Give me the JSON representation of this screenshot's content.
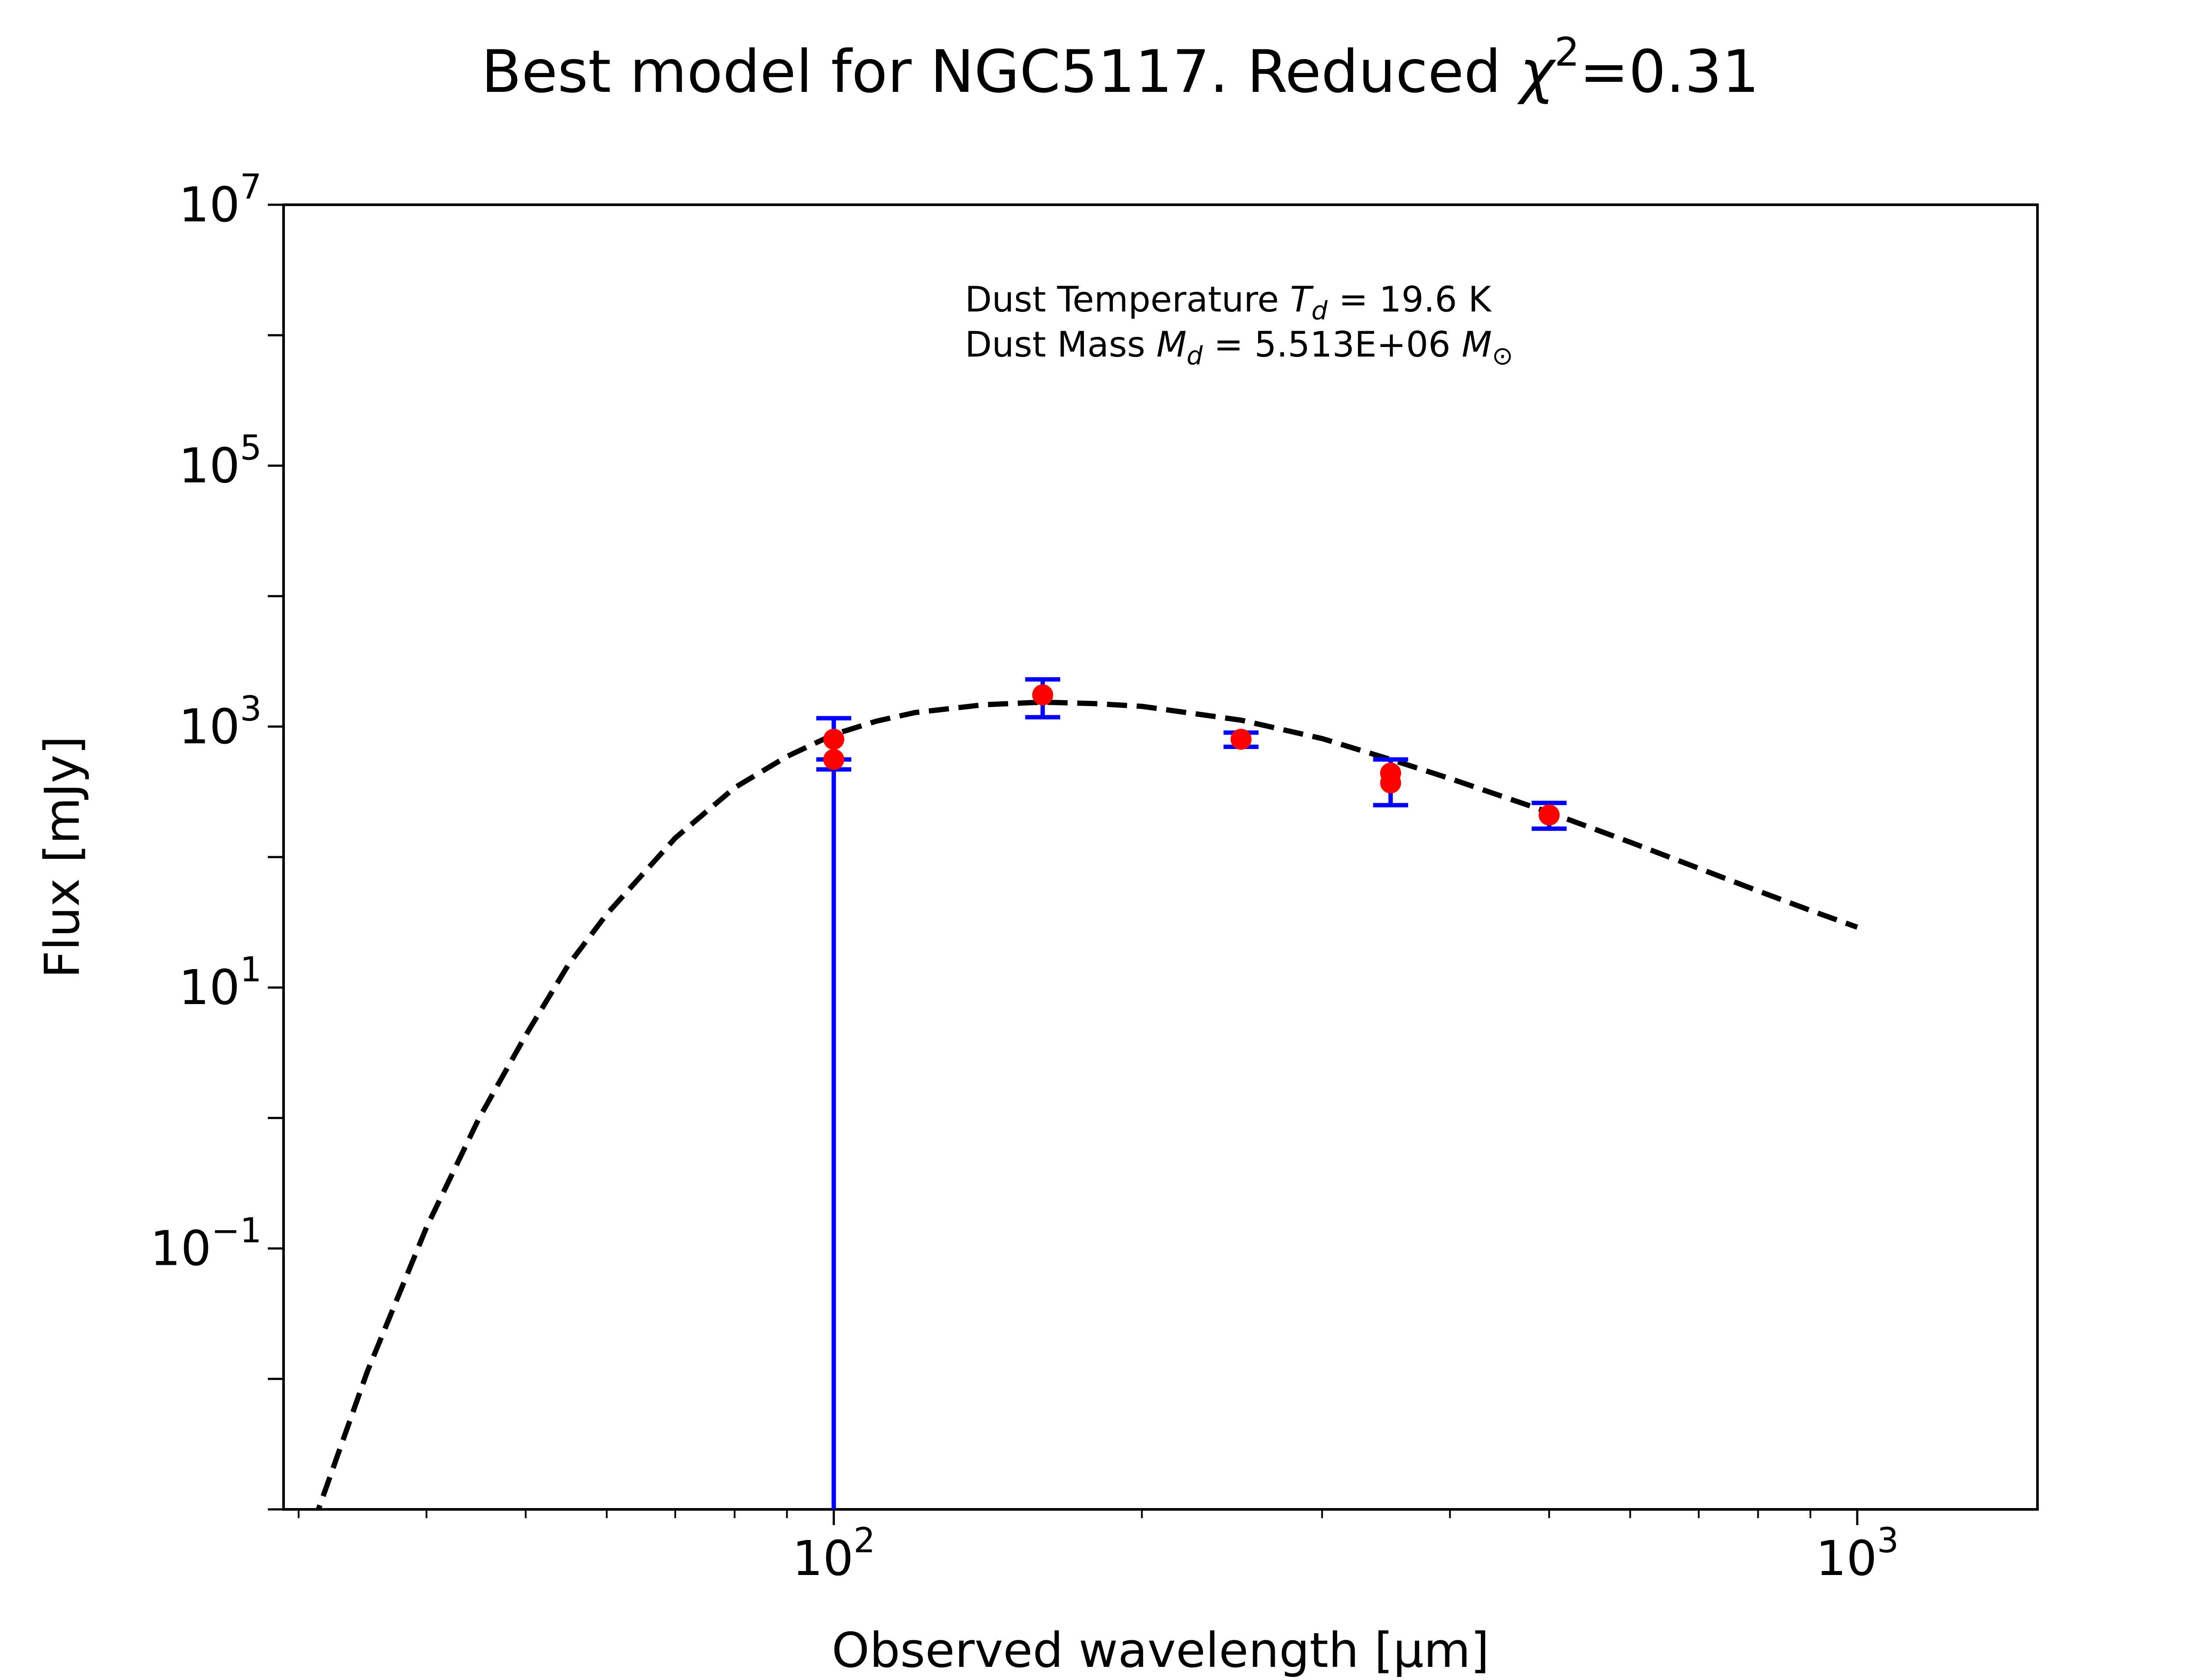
{
  "chart_data": {
    "type": "scatter",
    "title": "Best model for NGC5117. Reduced χ²=0.31",
    "title_main": "Best model for NGC5117. Reduced ",
    "title_chi": "χ",
    "title_sup": "2",
    "title_tail": "=0.31",
    "xlabel": "Observed wavelength [μm]",
    "ylabel": "Flux [mJy]",
    "xscale": "log",
    "yscale": "log",
    "xlim": [
      29,
      1500
    ],
    "ylim": [
      0.001,
      10000000
    ],
    "grid": false,
    "x_ticks": [
      {
        "value": 100,
        "base": "10",
        "exp": "2"
      },
      {
        "value": 1000,
        "base": "10",
        "exp": "3"
      }
    ],
    "y_ticks": [
      {
        "value": 10000000,
        "base": "10",
        "exp": "7"
      },
      {
        "value": 100000,
        "base": "10",
        "exp": "5"
      },
      {
        "value": 1000,
        "base": "10",
        "exp": "3"
      },
      {
        "value": 10,
        "base": "10",
        "exp": "1"
      },
      {
        "value": 0.1,
        "base": "10",
        "exp": "−1"
      }
    ],
    "annotation": {
      "line1_prefix": "Dust Temperature ",
      "line1_sym": "T",
      "line1_sub": "d",
      "line1_suffix": " = 19.6 K",
      "line2_prefix": "Dust Mass ",
      "line2_sym": "M",
      "line2_sub": "d",
      "line2_mid": " = 5.513E+06 ",
      "line2_unit": "M",
      "line2_unit_sub": "⊙"
    },
    "series": [
      {
        "kind": "model",
        "style": "dashed",
        "color": "#000000",
        "x": [
          31,
          35,
          40,
          45,
          50,
          55,
          60,
          70,
          80,
          90,
          100,
          110,
          120,
          140,
          160,
          180,
          200,
          250,
          300,
          350,
          400,
          500,
          600,
          700,
          800,
          900,
          1000
        ],
        "y": [
          0.00077,
          0.0113,
          0.145,
          0.99,
          4.3,
          14.8,
          36.5,
          140,
          340,
          590,
          870,
          1100,
          1280,
          1470,
          1540,
          1500,
          1430,
          1120,
          810,
          560,
          400,
          220,
          130,
          82,
          55,
          39,
          29
        ]
      },
      {
        "kind": "observed",
        "style": "points",
        "color": "#ff0000",
        "error_color": "#0000ff",
        "points": [
          {
            "x": 100,
            "y": 800,
            "err_low": 470,
            "err_high": 1160
          },
          {
            "x": 100,
            "y": 560,
            "err_low": 0.001,
            "err_high": 560
          },
          {
            "x": 160,
            "y": 1750,
            "err_low": 1180,
            "err_high": 2300
          },
          {
            "x": 250,
            "y": 800,
            "err_low": 700,
            "err_high": 900
          },
          {
            "x": 350,
            "y": 440,
            "err_low": 250,
            "err_high": 560
          },
          {
            "x": 350,
            "y": 370,
            "err_low": 370,
            "err_high": 370
          },
          {
            "x": 500,
            "y": 210,
            "err_low": 165,
            "err_high": 260
          }
        ]
      }
    ]
  }
}
